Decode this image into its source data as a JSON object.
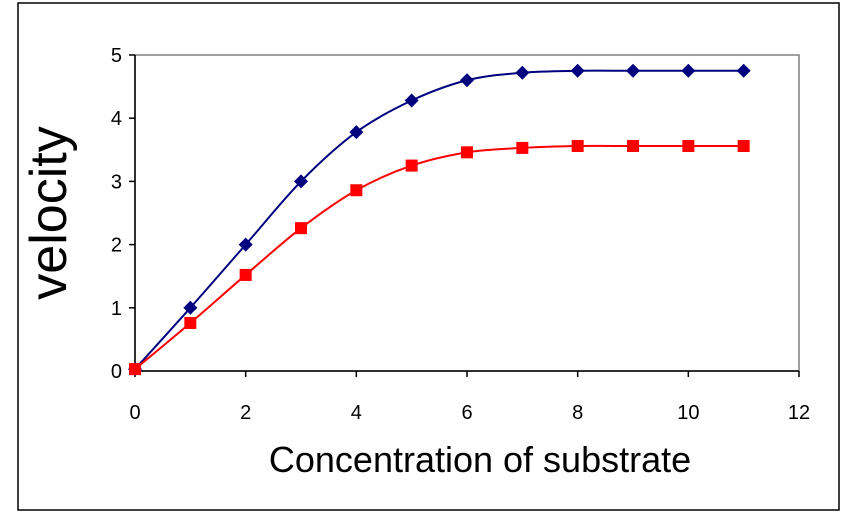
{
  "chart_data": {
    "type": "line",
    "title": "",
    "xlabel": "Concentration of substrate",
    "ylabel": "velocity",
    "xlim": [
      0,
      12
    ],
    "ylim": [
      0,
      5
    ],
    "xticks": [
      0,
      2,
      4,
      6,
      8,
      10,
      12
    ],
    "yticks": [
      0,
      1,
      2,
      3,
      4,
      5
    ],
    "grid": false,
    "legend": "none",
    "series": [
      {
        "color": "#00007f",
        "marker": "diamond",
        "x": [
          0,
          1,
          2,
          3,
          4,
          5,
          6,
          7,
          8,
          9,
          10,
          11
        ],
        "y": [
          0.03,
          1.0,
          2.0,
          3.0,
          3.78,
          4.28,
          4.6,
          4.72,
          4.75,
          4.75,
          4.75,
          4.75
        ]
      },
      {
        "color": "#ff0000",
        "marker": "square",
        "x": [
          0,
          1,
          2,
          3,
          4,
          5,
          6,
          7,
          8,
          9,
          10,
          11
        ],
        "y": [
          0.03,
          0.76,
          1.52,
          2.26,
          2.86,
          3.25,
          3.46,
          3.53,
          3.56,
          3.56,
          3.56,
          3.56
        ]
      }
    ]
  }
}
